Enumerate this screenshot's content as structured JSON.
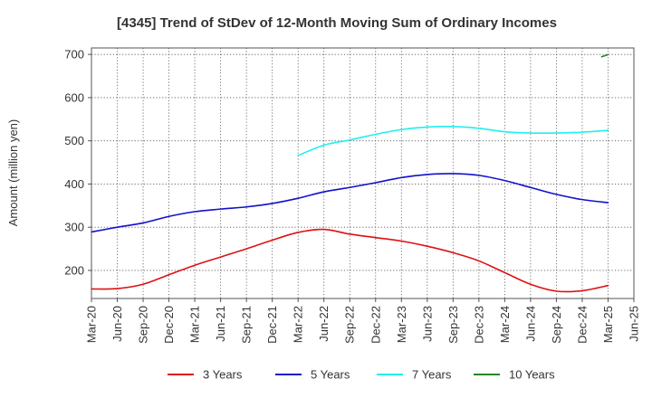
{
  "chart_data": {
    "type": "line",
    "title": "[4345]  Trend of StDev of 12-Month Moving Sum of Ordinary Incomes",
    "xlabel": "",
    "ylabel": "Amount (million yen)",
    "x": [
      "2020-03",
      "2020-06",
      "2020-09",
      "2020-12",
      "2021-03",
      "2021-06",
      "2021-09",
      "2021-12",
      "2022-03",
      "2022-06",
      "2022-09",
      "2022-12",
      "2023-03",
      "2023-06",
      "2023-09",
      "2023-12",
      "2024-03",
      "2024-06",
      "2024-09",
      "2024-12",
      "2025-03"
    ],
    "x_ticks": [
      "Mar-20",
      "Jun-20",
      "Sep-20",
      "Dec-20",
      "Mar-21",
      "Jun-21",
      "Sep-21",
      "Dec-21",
      "Mar-22",
      "Jun-22",
      "Sep-22",
      "Dec-22",
      "Mar-23",
      "Jun-23",
      "Sep-23",
      "Dec-23",
      "Mar-24",
      "Jun-24",
      "Sep-24",
      "Dec-24",
      "Mar-25",
      "Jun-25"
    ],
    "y_ticks": [
      "200",
      "300",
      "400",
      "500",
      "600",
      "700"
    ],
    "ylim": [
      135,
      715
    ],
    "grid": true,
    "legend_position": "bottom",
    "series": [
      {
        "name": "3 Years",
        "color": "#dd1111",
        "values": [
          157,
          158,
          168,
          190,
          212,
          231,
          250,
          270,
          288,
          295,
          284,
          276,
          268,
          256,
          241,
          222,
          195,
          168,
          152,
          153,
          165
        ]
      },
      {
        "name": "5 Years",
        "color": "#1111cc",
        "values": [
          289,
          300,
          310,
          325,
          336,
          342,
          347,
          355,
          367,
          382,
          392,
          403,
          415,
          422,
          424,
          420,
          408,
          392,
          376,
          364,
          357
        ]
      },
      {
        "name": "7 Years",
        "color": "#22eeee",
        "values": [
          null,
          null,
          null,
          null,
          null,
          null,
          null,
          null,
          466,
          490,
          502,
          515,
          526,
          532,
          533,
          529,
          521,
          518,
          518,
          520,
          524
        ]
      },
      {
        "name": "10 Years",
        "color": "#228822",
        "values": [
          null,
          null,
          null,
          null,
          null,
          null,
          null,
          null,
          null,
          null,
          null,
          null,
          null,
          null,
          null,
          null,
          null,
          null,
          null,
          null,
          697
        ]
      }
    ]
  }
}
